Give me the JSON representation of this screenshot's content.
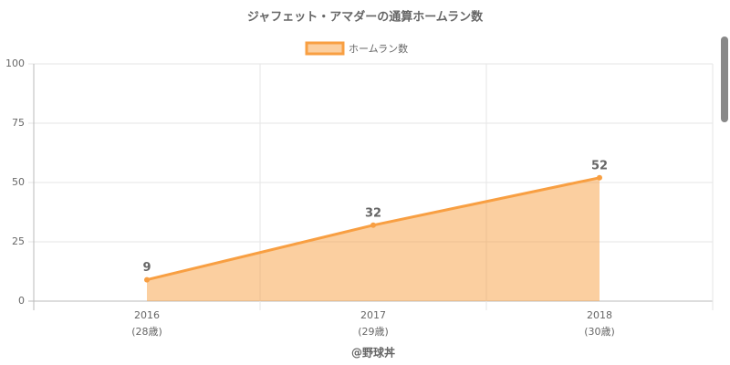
{
  "chart_data": {
    "type": "area",
    "title": "ジャフェット・アマダーの通算ホームラン数",
    "categories": [
      [
        "2016",
        "(28歳)"
      ],
      [
        "2017",
        "(29歳)"
      ],
      [
        "2018",
        "(30歳)"
      ]
    ],
    "series": [
      {
        "name": "ホームラン数",
        "color": "#f89f42",
        "values": [
          9,
          32,
          52
        ]
      }
    ],
    "x_label": "@野球丼",
    "ylim": [
      0,
      100
    ],
    "yticks": [
      0,
      25,
      50,
      75,
      100
    ],
    "grid": true,
    "legend": "top"
  }
}
